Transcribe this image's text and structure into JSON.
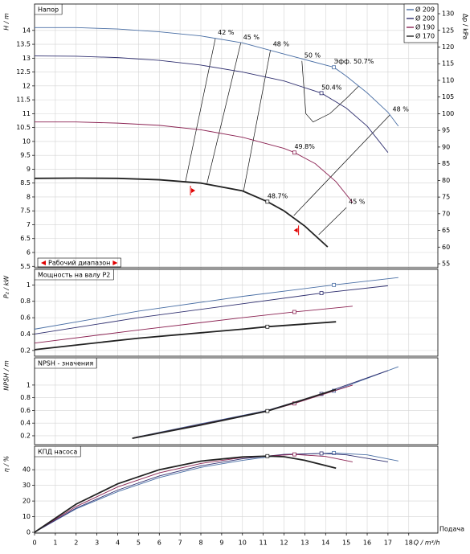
{
  "chart_data": [
    {
      "type": "line",
      "title": "Напор",
      "ylabel": "H / m",
      "y2label": "Δp / kPa",
      "xlim": [
        0,
        19.4
      ],
      "ylim": [
        5.45,
        14.95
      ],
      "yticks": [
        5.5,
        6,
        6.5,
        7,
        7.5,
        8,
        8.5,
        9,
        9.5,
        10,
        10.5,
        11,
        11.5,
        12,
        12.5,
        13,
        13.5,
        14
      ],
      "y2lim": [
        53.8,
        132.9
      ],
      "y2ticks": [
        55,
        60,
        65,
        70,
        75,
        80,
        85,
        90,
        95,
        100,
        105,
        110,
        115,
        120,
        125,
        130
      ],
      "grid": true,
      "legend": "upper right",
      "series": [
        {
          "name": "Ø 209",
          "color": "#4a6fa5",
          "x": [
            0,
            2,
            4,
            6,
            8,
            10,
            12,
            14.4,
            15,
            16,
            17,
            17.5
          ],
          "values": [
            14.1,
            14.1,
            14.05,
            13.95,
            13.8,
            13.55,
            13.15,
            12.67,
            12.35,
            11.75,
            11.05,
            10.55
          ],
          "marker": {
            "x": 14.4,
            "value": 12.67,
            "label": "Эфф. 50.7%"
          }
        },
        {
          "name": "Ø 200",
          "color": "#303070",
          "x": [
            0,
            2,
            4,
            6,
            8,
            10,
            12,
            13.8,
            15,
            16,
            17
          ],
          "values": [
            13.08,
            13.07,
            13.02,
            12.92,
            12.75,
            12.5,
            12.18,
            11.74,
            11.2,
            10.55,
            9.6
          ],
          "marker": {
            "x": 13.8,
            "value": 11.74,
            "label": "50.4%"
          }
        },
        {
          "name": "Ø 190",
          "color": "#8b2252",
          "x": [
            0,
            2,
            4,
            6,
            8,
            10,
            12,
            12.5,
            13.5,
            14.5,
            15.3
          ],
          "values": [
            10.7,
            10.7,
            10.66,
            10.58,
            10.42,
            10.15,
            9.75,
            9.6,
            9.2,
            8.55,
            7.8
          ],
          "marker": {
            "x": 12.5,
            "value": 9.6,
            "label": "49.8%"
          }
        },
        {
          "name": "Ø 170",
          "color": "#222222",
          "x": [
            0,
            2,
            4,
            6,
            8,
            10,
            11.2,
            12,
            13,
            14.1
          ],
          "values": [
            8.67,
            8.68,
            8.67,
            8.62,
            8.5,
            8.22,
            7.83,
            7.5,
            6.95,
            6.2
          ],
          "marker": {
            "x": 11.2,
            "value": 7.83,
            "label": "48.7%"
          }
        }
      ],
      "contours": [
        {
          "label": "42 %",
          "x": [
            8.7,
            7.26
          ],
          "values": [
            13.72,
            8.55
          ]
        },
        {
          "label": "45 %",
          "x": [
            9.92,
            8.3
          ],
          "values": [
            13.55,
            8.5
          ]
        },
        {
          "label": "48 %",
          "x": [
            11.35,
            10.05
          ],
          "values": [
            13.3,
            8.2
          ]
        },
        {
          "label": "50 %",
          "x": [
            12.86,
            12.95,
            13.05,
            13.4,
            14.2,
            15.0,
            15.6
          ],
          "values": [
            12.9,
            12.0,
            11.0,
            10.7,
            11.0,
            11.55,
            12.0
          ]
        },
        {
          "label": "48 %",
          "x": [
            17.1,
            12.47
          ],
          "values": [
            10.96,
            7.33
          ]
        },
        {
          "label": "45 %",
          "x": [
            15.0,
            13.67
          ],
          "values": [
            7.62,
            6.64
          ]
        }
      ],
      "range_label": "Рабочий диапазон",
      "range_x": [
        7.5,
        12.7
      ],
      "range_values": [
        8.23,
        6.8
      ]
    },
    {
      "type": "line",
      "title": "Мощность на валу P2",
      "ylabel": "P₂ / kW",
      "xlim": [
        0,
        19.4
      ],
      "ylim": [
        0.13,
        1.19
      ],
      "yticks": [
        0.2,
        0.4,
        0.6,
        0.8,
        1
      ],
      "grid": true,
      "series": [
        {
          "color": "#4a6fa5",
          "x": [
            0,
            5,
            10,
            14.4,
            17.5
          ],
          "values": [
            0.46,
            0.68,
            0.86,
            1.0,
            1.09
          ],
          "marker": {
            "x": 14.4,
            "value": 1.0
          }
        },
        {
          "color": "#303070",
          "x": [
            0,
            5,
            10,
            13.8,
            17
          ],
          "values": [
            0.4,
            0.6,
            0.77,
            0.9,
            0.99
          ],
          "marker": {
            "x": 13.8,
            "value": 0.9
          }
        },
        {
          "color": "#8b2252",
          "x": [
            0,
            5,
            10,
            12.5,
            15.3
          ],
          "values": [
            0.29,
            0.45,
            0.6,
            0.67,
            0.74
          ],
          "marker": {
            "x": 12.5,
            "value": 0.67
          }
        },
        {
          "color": "#222222",
          "x": [
            0,
            5,
            10,
            11.2,
            14.5
          ],
          "values": [
            0.21,
            0.35,
            0.46,
            0.49,
            0.55
          ],
          "marker": {
            "x": 11.2,
            "value": 0.49
          }
        }
      ]
    },
    {
      "type": "line",
      "title": "NPSH - значения",
      "ylabel": "NPSH / m",
      "xlim": [
        0,
        19.4
      ],
      "ylim": [
        0.06,
        1.43
      ],
      "yticks": [
        0.2,
        0.4,
        0.6,
        0.8,
        1
      ],
      "grid": true,
      "series": [
        {
          "color": "#4a6fa5",
          "x": [
            4.9,
            8,
            11.2,
            14.4,
            17.5
          ],
          "values": [
            0.18,
            0.39,
            0.6,
            0.91,
            1.29
          ],
          "marker": {
            "x": 14.4,
            "value": 0.91
          }
        },
        {
          "color": "#303070",
          "x": [
            4.8,
            8,
            11.2,
            13.8,
            17
          ],
          "values": [
            0.17,
            0.38,
            0.6,
            0.86,
            1.23
          ],
          "marker": {
            "x": 13.8,
            "value": 0.86
          }
        },
        {
          "color": "#8b2252",
          "x": [
            4.8,
            8,
            11.2,
            12.5,
            15.3
          ],
          "values": [
            0.17,
            0.38,
            0.59,
            0.71,
            1.0
          ],
          "marker": {
            "x": 12.5,
            "value": 0.71
          }
        },
        {
          "color": "#222222",
          "x": [
            4.7,
            8,
            11.2,
            14.5
          ],
          "values": [
            0.16,
            0.37,
            0.59,
            0.93
          ],
          "marker": {
            "x": 11.2,
            "value": 0.59
          }
        }
      ]
    },
    {
      "type": "line",
      "title": "КПД насоса",
      "ylabel": "η / %",
      "xlabel": "Q / m³/h",
      "xtitle": "Подача",
      "xlim": [
        0,
        19.4
      ],
      "ylim": [
        -0.5,
        55
      ],
      "yticks": [
        0,
        10,
        20,
        30,
        40
      ],
      "xticks": [
        0,
        1,
        2,
        3,
        4,
        5,
        6,
        7,
        8,
        9,
        10,
        11,
        12,
        13,
        14,
        15,
        16,
        17,
        18
      ],
      "grid": true,
      "series": [
        {
          "color": "#4a6fa5",
          "x": [
            0,
            2,
            4,
            6,
            8,
            10,
            12,
            14.4,
            16,
            17.5
          ],
          "values": [
            0,
            15,
            26,
            35,
            41.5,
            46,
            49.5,
            50.7,
            49.5,
            45.6
          ],
          "marker": {
            "x": 14.4,
            "value": 50.7
          }
        },
        {
          "color": "#303070",
          "x": [
            0,
            2,
            4,
            6,
            8,
            10,
            12,
            13.8,
            15,
            17
          ],
          "values": [
            0,
            15.5,
            27,
            36,
            42.5,
            47,
            49.8,
            50.4,
            49.5,
            45
          ],
          "marker": {
            "x": 13.8,
            "value": 50.4
          }
        },
        {
          "color": "#8b2252",
          "x": [
            0,
            2,
            4,
            6,
            8,
            10,
            12.5,
            14,
            15.3
          ],
          "values": [
            0,
            16.5,
            29,
            38,
            44,
            47.8,
            49.8,
            48.5,
            45
          ],
          "marker": {
            "x": 12.5,
            "value": 49.8
          }
        },
        {
          "color": "#222222",
          "x": [
            0,
            2,
            4,
            6,
            8,
            10,
            11.2,
            12,
            13,
            14.5
          ],
          "values": [
            0,
            18,
            31,
            40,
            45.5,
            48.2,
            48.7,
            48.3,
            46,
            41
          ],
          "marker": {
            "x": 11.2,
            "value": 48.7
          }
        }
      ]
    }
  ]
}
